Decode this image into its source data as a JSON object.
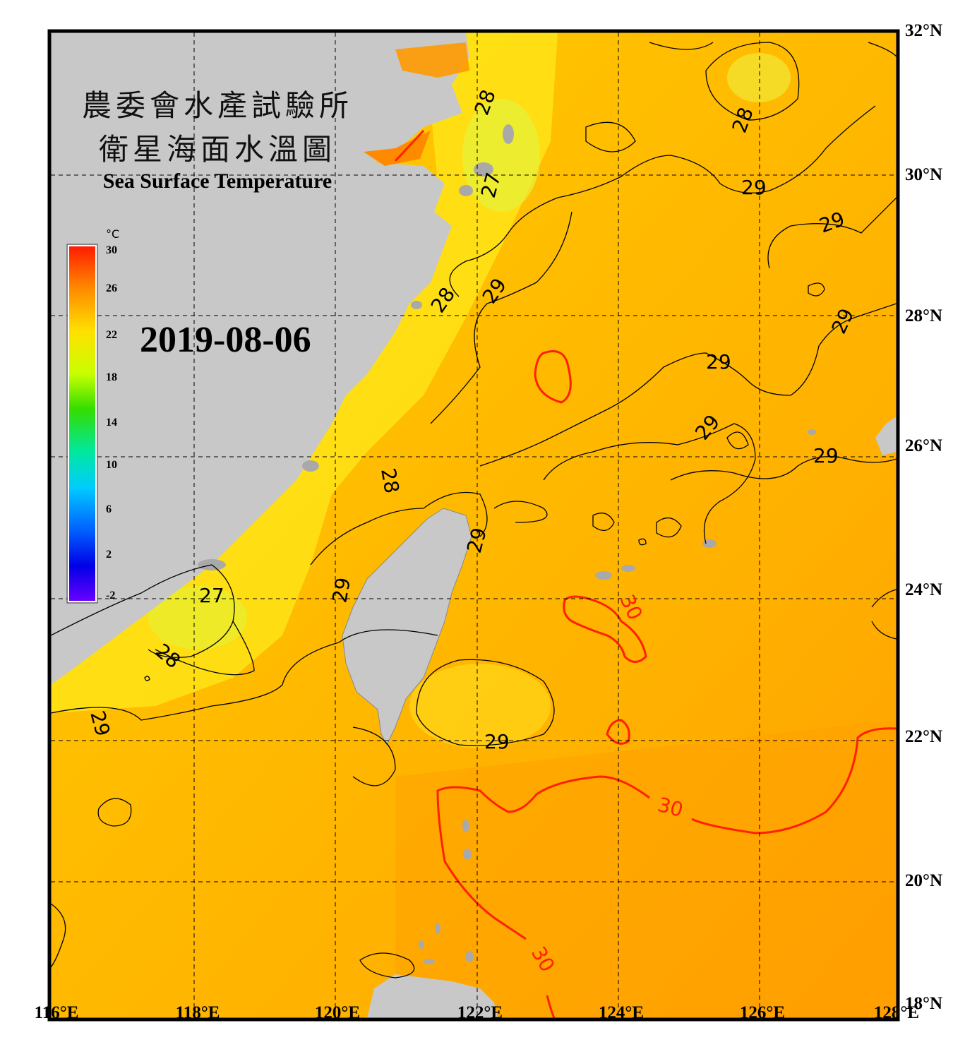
{
  "title": {
    "line1": "農委會水產試驗所",
    "line2": "衛星海面水溫圖",
    "english": "Sea Surface Temperature"
  },
  "date": "2019-08-06",
  "colorbar": {
    "unit": "°C",
    "ticks": [
      "30",
      "26",
      "22",
      "18",
      "14",
      "10",
      "6",
      "2",
      "-2"
    ],
    "colors": [
      "#ff1a00",
      "#ff8a00",
      "#ffe000",
      "#c8ff00",
      "#33dd00",
      "#00e8a0",
      "#00ccff",
      "#0060ff",
      "#0000e6",
      "#6a00ff"
    ]
  },
  "axes": {
    "latitude_labels": [
      "32°N",
      "30°N",
      "28°N",
      "26°N",
      "24°N",
      "22°N",
      "20°N",
      "18°N"
    ],
    "longitude_labels": [
      "116°E",
      "118°E",
      "120°E",
      "122°E",
      "124°E",
      "126°E",
      "128°E"
    ]
  },
  "contour_labels": [
    {
      "text": "28",
      "color": "black"
    },
    {
      "text": "27",
      "color": "black"
    },
    {
      "text": "28",
      "color": "black"
    },
    {
      "text": "29",
      "color": "black"
    },
    {
      "text": "29",
      "color": "black"
    },
    {
      "text": "28",
      "color": "black"
    },
    {
      "text": "29",
      "color": "black"
    },
    {
      "text": "29",
      "color": "black"
    },
    {
      "text": "29",
      "color": "black"
    },
    {
      "text": "29",
      "color": "black"
    },
    {
      "text": "29",
      "color": "black"
    },
    {
      "text": "28",
      "color": "black"
    },
    {
      "text": "29",
      "color": "black"
    },
    {
      "text": "29",
      "color": "black"
    },
    {
      "text": "27",
      "color": "black"
    },
    {
      "text": "28",
      "color": "black"
    },
    {
      "text": "29",
      "color": "black"
    },
    {
      "text": "29",
      "color": "black"
    },
    {
      "text": "30",
      "color": "red"
    },
    {
      "text": "30",
      "color": "red"
    },
    {
      "text": "30",
      "color": "red"
    }
  ],
  "colors": {
    "land": "#c8c8c8",
    "sea_warm": "#ffaa00",
    "sea_mid": "#ffcc00",
    "sea_cool": "#ffee22",
    "contour_30": "#ff2000",
    "frame": "#000000"
  }
}
